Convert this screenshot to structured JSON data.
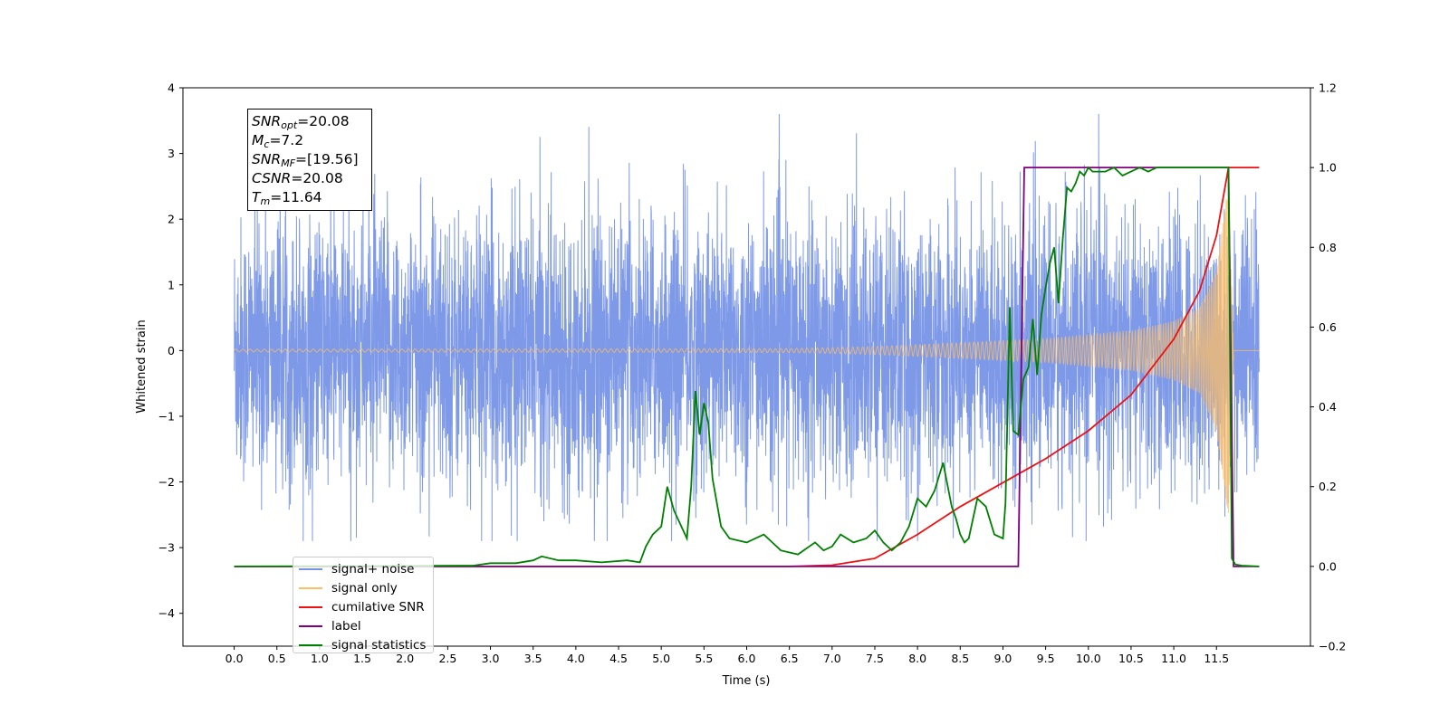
{
  "chart_data": {
    "type": "line",
    "xlabel": "Time (s)",
    "ylabel": "Whitened strain",
    "xlim": [
      -0.6,
      12.6
    ],
    "ylim": [
      -4.5,
      4.0
    ],
    "y2lim": [
      -0.2,
      1.2
    ],
    "xticks": [
      "0.0",
      "0.5",
      "1.0",
      "1.5",
      "2.0",
      "2.5",
      "3.0",
      "3.5",
      "4.0",
      "4.5",
      "5.0",
      "5.5",
      "6.0",
      "6.5",
      "7.0",
      "7.5",
      "8.0",
      "8.5",
      "9.0",
      "9.5",
      "10.0",
      "10.5",
      "11.0",
      "11.5"
    ],
    "yticks": [
      "4",
      "3",
      "2",
      "1",
      "0",
      "−1",
      "−2",
      "−3",
      "−4"
    ],
    "y2ticks": [
      "1.2",
      "1.0",
      "0.8",
      "0.6",
      "0.4",
      "0.2",
      "0.0",
      "−0.2"
    ],
    "legend_position": "lower-left",
    "annotation": {
      "snr_opt": "=20.08",
      "mc": "=7.2",
      "snr_mf": "=[19.56]",
      "csnr": "=20.08",
      "tm": "=11.64"
    },
    "series": [
      {
        "name": "signal+ noise",
        "color": "#7693e6",
        "axis": "left",
        "description_range": [
          -2.9,
          3.6
        ],
        "x_range": [
          0.0,
          12.0
        ]
      },
      {
        "name": "signal only",
        "color": "#ffbf66",
        "axis": "left",
        "envelope": {
          "x": [
            0.0,
            6.5,
            7.5,
            8.5,
            9.5,
            10.5,
            11.0,
            11.3,
            11.5,
            11.64,
            11.7,
            12.0
          ],
          "amp": [
            0.02,
            0.03,
            0.06,
            0.12,
            0.18,
            0.3,
            0.45,
            0.65,
            1.2,
            2.6,
            0.0,
            0.0
          ]
        }
      },
      {
        "name": "cumilative SNR",
        "color": "#ee1111",
        "axis": "right",
        "x": [
          0.0,
          6.5,
          7.0,
          7.5,
          8.0,
          8.5,
          9.0,
          9.5,
          10.0,
          10.5,
          11.0,
          11.3,
          11.5,
          11.64,
          12.0
        ],
        "y": [
          0.0,
          0.0,
          0.003,
          0.02,
          0.08,
          0.15,
          0.21,
          0.27,
          0.34,
          0.43,
          0.57,
          0.69,
          0.83,
          1.0,
          1.0
        ]
      },
      {
        "name": "label",
        "color": "#800080",
        "axis": "right",
        "x": [
          0.0,
          9.18,
          9.25,
          11.64,
          11.7,
          12.0
        ],
        "y": [
          0.0,
          0.0,
          1.0,
          1.0,
          0.0,
          0.0
        ]
      },
      {
        "name": "signal statistics",
        "color": "#008000",
        "axis": "right",
        "x": [
          0.0,
          2.8,
          3.0,
          3.3,
          3.5,
          3.6,
          3.8,
          4.0,
          4.3,
          4.6,
          4.75,
          4.82,
          4.9,
          5.0,
          5.07,
          5.15,
          5.3,
          5.35,
          5.4,
          5.45,
          5.5,
          5.55,
          5.6,
          5.7,
          5.8,
          6.0,
          6.2,
          6.3,
          6.4,
          6.6,
          6.8,
          6.9,
          7.0,
          7.1,
          7.25,
          7.4,
          7.5,
          7.6,
          7.7,
          7.8,
          7.9,
          8.0,
          8.1,
          8.2,
          8.3,
          8.4,
          8.45,
          8.5,
          8.55,
          8.6,
          8.7,
          8.8,
          8.9,
          9.0,
          9.03,
          9.08,
          9.12,
          9.18,
          9.24,
          9.3,
          9.35,
          9.4,
          9.45,
          9.5,
          9.55,
          9.6,
          9.65,
          9.7,
          9.75,
          9.8,
          9.85,
          9.9,
          9.95,
          10.0,
          10.05,
          10.1,
          10.2,
          10.3,
          10.4,
          10.5,
          10.6,
          10.7,
          10.8,
          10.9,
          11.0,
          11.5,
          11.64,
          11.68,
          11.72,
          11.8,
          12.0
        ],
        "y": [
          0.0,
          0.002,
          0.008,
          0.008,
          0.015,
          0.025,
          0.015,
          0.015,
          0.01,
          0.015,
          0.01,
          0.05,
          0.08,
          0.1,
          0.2,
          0.14,
          0.07,
          0.2,
          0.44,
          0.33,
          0.41,
          0.36,
          0.22,
          0.1,
          0.07,
          0.06,
          0.08,
          0.06,
          0.04,
          0.03,
          0.06,
          0.04,
          0.05,
          0.08,
          0.06,
          0.07,
          0.09,
          0.06,
          0.04,
          0.06,
          0.1,
          0.17,
          0.15,
          0.19,
          0.26,
          0.15,
          0.12,
          0.08,
          0.06,
          0.07,
          0.17,
          0.15,
          0.08,
          0.07,
          0.16,
          0.65,
          0.34,
          0.33,
          0.47,
          0.5,
          0.62,
          0.48,
          0.63,
          0.7,
          0.76,
          0.8,
          0.66,
          0.82,
          0.95,
          0.94,
          0.96,
          0.99,
          0.98,
          1.0,
          0.99,
          0.99,
          0.99,
          1.0,
          0.98,
          0.99,
          1.0,
          0.99,
          1.0,
          1.0,
          1.0,
          1.0,
          1.0,
          0.02,
          0.005,
          0.002,
          0.0
        ]
      }
    ]
  },
  "legend": {
    "entries": [
      {
        "label": "signal+ noise",
        "color": "#7693e6"
      },
      {
        "label": "signal only",
        "color": "#ffbf66"
      },
      {
        "label": "cumilative SNR",
        "color": "#ee1111"
      },
      {
        "label": "label",
        "color": "#800080"
      },
      {
        "label": "signal statistics",
        "color": "#008000"
      }
    ]
  }
}
